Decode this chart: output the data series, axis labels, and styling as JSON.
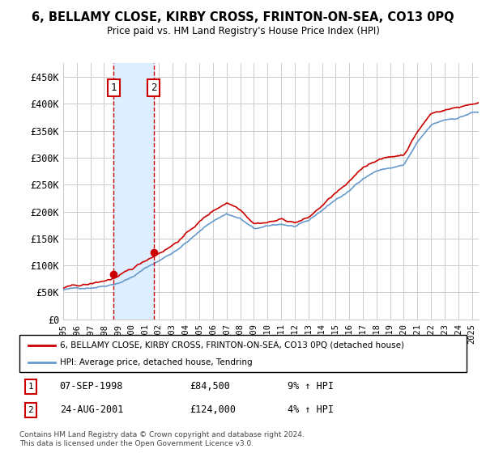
{
  "title": "6, BELLAMY CLOSE, KIRBY CROSS, FRINTON-ON-SEA, CO13 0PQ",
  "subtitle": "Price paid vs. HM Land Registry's House Price Index (HPI)",
  "ylabel_ticks": [
    "£0",
    "£50K",
    "£100K",
    "£150K",
    "£200K",
    "£250K",
    "£300K",
    "£350K",
    "£400K",
    "£450K"
  ],
  "ytick_values": [
    0,
    50000,
    100000,
    150000,
    200000,
    250000,
    300000,
    350000,
    400000,
    450000
  ],
  "ylim": [
    0,
    475000
  ],
  "xlim_start": 1995.0,
  "xlim_end": 2025.5,
  "sale1": {
    "date": 1998.69,
    "price": 84500,
    "label": "1"
  },
  "sale2": {
    "date": 2001.65,
    "price": 124000,
    "label": "2"
  },
  "legend_line1": "6, BELLAMY CLOSE, KIRBY CROSS, FRINTON-ON-SEA, CO13 0PQ (detached house)",
  "legend_line2": "HPI: Average price, detached house, Tendring",
  "table_entries": [
    {
      "num": "1",
      "date": "07-SEP-1998",
      "price": "£84,500",
      "hpi": "9% ↑ HPI"
    },
    {
      "num": "2",
      "date": "24-AUG-2001",
      "price": "£124,000",
      "hpi": "4% ↑ HPI"
    }
  ],
  "footer": "Contains HM Land Registry data © Crown copyright and database right 2024.\nThis data is licensed under the Open Government Licence v3.0.",
  "red_color": "#cc0000",
  "blue_color": "#6699cc",
  "shade_color": "#ddeeff",
  "grid_color": "#cccccc",
  "x_years": [
    1995,
    1996,
    1997,
    1998,
    1999,
    2000,
    2001,
    2002,
    2003,
    2004,
    2005,
    2006,
    2007,
    2008,
    2009,
    2010,
    2011,
    2012,
    2013,
    2014,
    2015,
    2016,
    2017,
    2018,
    2019,
    2020,
    2021,
    2022,
    2023,
    2024,
    2025
  ],
  "hpi_values": [
    55000,
    57000,
    60000,
    65000,
    72000,
    83000,
    99000,
    113000,
    128000,
    148000,
    168000,
    188000,
    202000,
    193000,
    173000,
    176000,
    180000,
    176000,
    183000,
    203000,
    223000,
    238000,
    263000,
    278000,
    283000,
    288000,
    328000,
    358000,
    368000,
    373000,
    383000
  ],
  "price_values": [
    58000,
    60500,
    63000,
    69000,
    76000,
    87000,
    104000,
    120000,
    136000,
    157000,
    180000,
    200000,
    217000,
    207000,
    184000,
    187000,
    192000,
    187000,
    195000,
    217000,
    240000,
    257000,
    284000,
    300000,
    305000,
    310000,
    354000,
    387000,
    395000,
    400000,
    408000
  ]
}
